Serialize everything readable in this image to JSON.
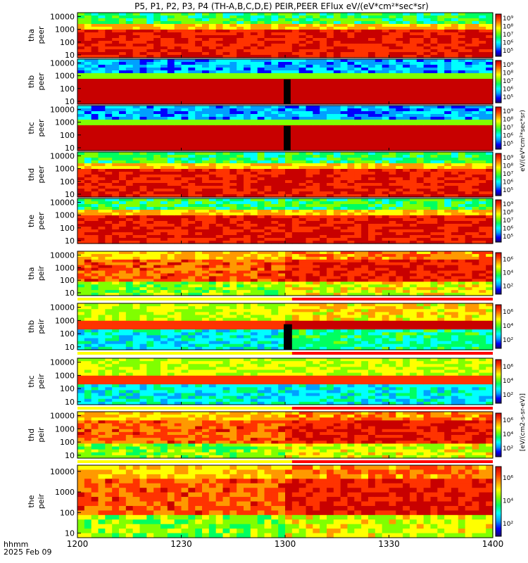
{
  "chart_data": {
    "type": "heatmap",
    "title": "P5, P1, P2, P3, P4 (TH-A,B,C,D,E) PEIR,PEER EFlux eV/(eV*cm²*sec*sr)",
    "x_tick_labels": [
      "1200",
      "1230",
      "1300",
      "1330",
      "1400"
    ],
    "x_ticks_minutes": [
      0,
      30,
      60,
      90,
      120
    ],
    "x_range_minutes": [
      0,
      120
    ],
    "x_axis_label": "hhmm",
    "date_label": "2025 Feb 09",
    "y_scale": "log",
    "y_range": [
      6,
      20000
    ],
    "y_tick_labels": [
      "10",
      "100",
      "1000",
      "10000"
    ],
    "y_ticks": [
      10,
      100,
      1000,
      10000
    ],
    "colorbar_label_electrons": "eV/(eV*cm²*sec*sr)",
    "colorbar_label_ions": "[eV/(cm2-s-sr-eV)]",
    "colorbar_tick_labels": [
      "10⁵",
      "10⁶",
      "10⁷",
      "10⁸",
      "10⁹"
    ],
    "colorbar_tick_labels_ions": [
      "10²",
      "10⁴",
      "10⁶"
    ],
    "colorscale": [
      "#1a0070",
      "#0000ff",
      "#00a0ff",
      "#00ffff",
      "#00ff60",
      "#80ff00",
      "#ffff00",
      "#ff9900",
      "#ff3300",
      "#c80000"
    ],
    "panels": [
      {
        "probe": "tha",
        "product": "peer",
        "kind": "electron",
        "gap_minutes": [],
        "bar_below": false
      },
      {
        "probe": "thb",
        "product": "peer",
        "kind": "electron",
        "gap_minutes": [
          59.6,
          61.6
        ],
        "bar_below": false
      },
      {
        "probe": "thc",
        "product": "peer",
        "kind": "electron",
        "gap_minutes": [
          59.6,
          61.6
        ],
        "bar_below": false
      },
      {
        "probe": "thd",
        "product": "peer",
        "kind": "electron",
        "gap_minutes": [],
        "bar_below": false
      },
      {
        "probe": "the",
        "product": "peer",
        "kind": "electron",
        "gap_minutes": [],
        "bar_below": false
      },
      {
        "probe": "tha",
        "product": "peir",
        "kind": "ion",
        "gap_minutes": [],
        "bar_below": true
      },
      {
        "probe": "thb",
        "product": "peir",
        "kind": "ion",
        "gap_minutes": [
          59.6,
          62.0
        ],
        "bar_below": true
      },
      {
        "probe": "thc",
        "product": "peir",
        "kind": "ion",
        "gap_minutes": [],
        "bar_below": true
      },
      {
        "probe": "thd",
        "product": "peir",
        "kind": "ion",
        "gap_minutes": [],
        "bar_below": true
      },
      {
        "probe": "the",
        "product": "peir",
        "kind": "ion",
        "gap_minutes": [],
        "bar_below": false
      }
    ]
  }
}
